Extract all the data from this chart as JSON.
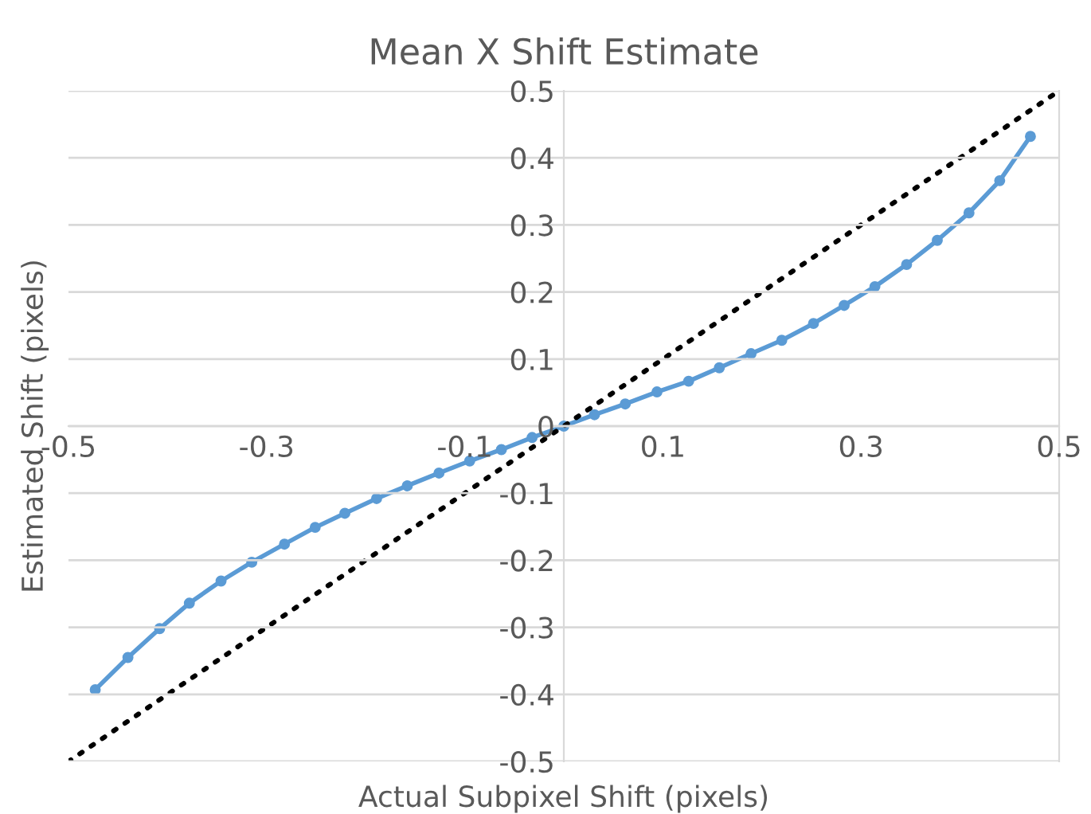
{
  "chart_data": {
    "type": "line",
    "title": "Mean X Shift Estimate",
    "xlabel": "Actual Subpixel Shift (pixels)",
    "ylabel": "Estimated Shift (pixels)",
    "series": [
      {
        "color": "#5b9bd5",
        "marker": "circle",
        "line_style": "solid",
        "x": [
          -0.473,
          -0.44,
          -0.408,
          -0.378,
          -0.346,
          -0.315,
          -0.282,
          -0.251,
          -0.221,
          -0.189,
          -0.158,
          -0.126,
          -0.095,
          -0.063,
          -0.032,
          0,
          0.031,
          0.062,
          0.094,
          0.126,
          0.157,
          0.189,
          0.22,
          0.252,
          0.283,
          0.314,
          0.346,
          0.377,
          0.409,
          0.44,
          0.471
        ],
        "values": [
          -0.393,
          -0.345,
          -0.302,
          -0.264,
          -0.231,
          -0.203,
          -0.176,
          -0.151,
          -0.13,
          -0.108,
          -0.089,
          -0.07,
          -0.052,
          -0.035,
          -0.017,
          0,
          0.017,
          0.033,
          0.051,
          0.067,
          0.087,
          0.108,
          0.128,
          0.153,
          0.18,
          0.208,
          0.241,
          0.277,
          0.318,
          0.366,
          0.432
        ]
      },
      {
        "color": "#000000",
        "marker": "none",
        "line_style": "dotted",
        "x": [
          -0.5,
          0.5
        ],
        "values": [
          -0.5,
          0.5
        ]
      }
    ],
    "xlim": [
      -0.5,
      0.5
    ],
    "ylim": [
      -0.5,
      0.5
    ],
    "xticks": [
      -0.5,
      -0.3,
      -0.1,
      0.1,
      0.3,
      0.5
    ],
    "yticks": [
      -0.5,
      -0.4,
      -0.3,
      -0.2,
      -0.1,
      0,
      0.1,
      0.2,
      0.3,
      0.4,
      0.5
    ],
    "grid": "y",
    "legend": false
  }
}
